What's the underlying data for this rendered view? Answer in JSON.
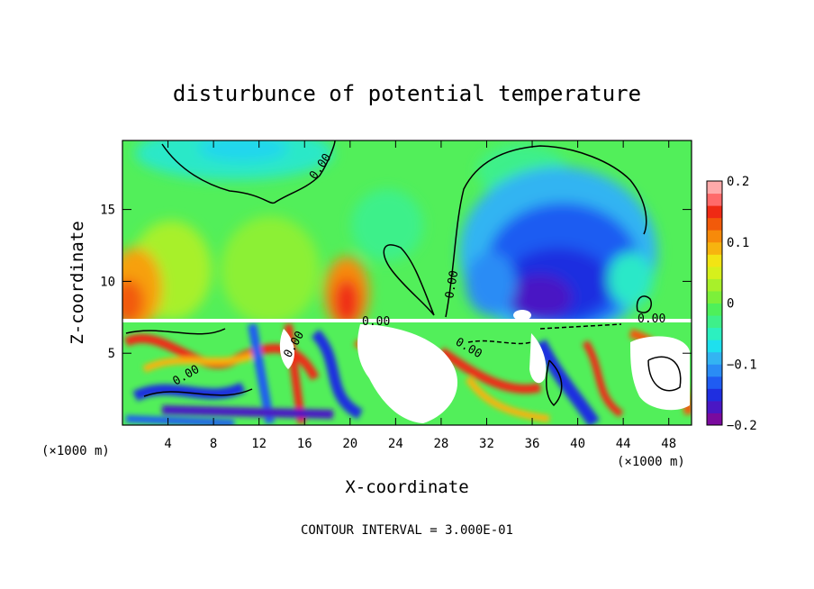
{
  "chart_data": {
    "type": "heatmap",
    "title": "disturbunce of potential temperature",
    "xlabel": "X-coordinate",
    "ylabel": "Z-coordinate",
    "x_unit_left": "(×1000 m)",
    "x_unit_right": "(×1000 m)",
    "x_ticks": [
      4,
      8,
      12,
      16,
      20,
      24,
      28,
      32,
      36,
      40,
      44,
      48
    ],
    "y_ticks": [
      5,
      10,
      15
    ],
    "xlim": [
      0,
      50
    ],
    "ylim": [
      0,
      19.8
    ],
    "colorbar": {
      "ticks": [
        0.2,
        0.1,
        0,
        -0.1,
        -0.2
      ],
      "tick_labels": [
        "0.2",
        "0.1",
        "0",
        "−0.1",
        "−0.2"
      ],
      "range": [
        -0.2,
        0.2
      ],
      "colors": [
        "#7a0a9e",
        "#4a17c4",
        "#1f2ee0",
        "#1f5cf2",
        "#2a8cf5",
        "#33b4f2",
        "#1ee0ee",
        "#2cf0c0",
        "#3ef08a",
        "#4ef05a",
        "#7cf03a",
        "#a8f02a",
        "#d6f01c",
        "#f2e414",
        "#f7b40f",
        "#f78a0a",
        "#f25a0a",
        "#ef2a14",
        "#ff6a6a",
        "#ffaaaa"
      ]
    },
    "contour_labels": [
      "0.00",
      "0.00",
      "0.00",
      "0.00",
      "0.00",
      "0.00",
      "0.00"
    ],
    "regions": [
      {
        "x": [
          0,
          50
        ],
        "y": [
          7.3,
          19.8
        ],
        "value": 0.02
      },
      {
        "x": [
          0,
          4
        ],
        "y": [
          7.5,
          12
        ],
        "value": 0.12
      },
      {
        "x": [
          17,
          22
        ],
        "y": [
          7.5,
          12
        ],
        "value": 0.14
      },
      {
        "x": [
          28,
          45
        ],
        "y": [
          7.5,
          16
        ],
        "value": -0.14
      },
      {
        "x": [
          8,
          13
        ],
        "y": [
          16,
          19.8
        ],
        "value": -0.04
      },
      {
        "x": [
          0,
          50
        ],
        "y": [
          0,
          7.3
        ],
        "value": 0.0
      }
    ],
    "footer": "CONTOUR INTERVAL = 3.000E-01"
  }
}
